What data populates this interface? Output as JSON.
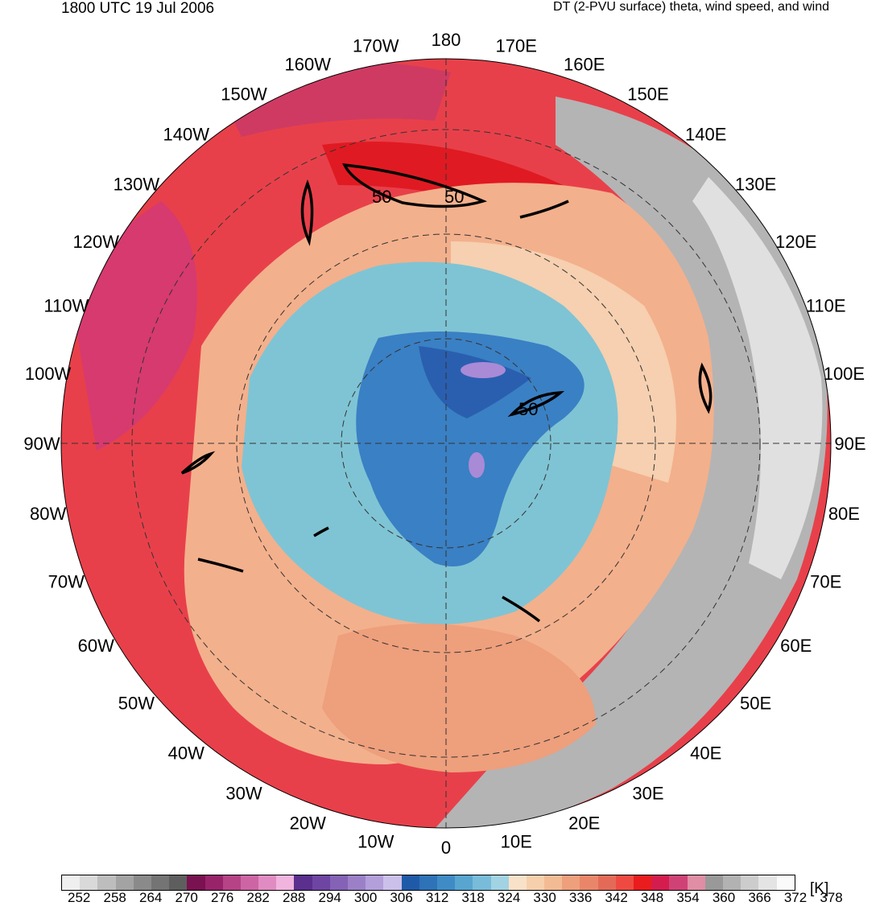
{
  "header": {
    "time": "1800 UTC 19 Jul 2006",
    "description": "DT (2-PVU surface) theta, wind speed, and wind"
  },
  "map": {
    "projection": "north-polar-stereographic",
    "longitude_labels": [
      {
        "lon": 180,
        "text": "180"
      },
      {
        "lon": -170,
        "text": "170W"
      },
      {
        "lon": -160,
        "text": "160W"
      },
      {
        "lon": -150,
        "text": "150W"
      },
      {
        "lon": -140,
        "text": "140W"
      },
      {
        "lon": -130,
        "text": "130W"
      },
      {
        "lon": -120,
        "text": "120W"
      },
      {
        "lon": -110,
        "text": "110W"
      },
      {
        "lon": -100,
        "text": "100W"
      },
      {
        "lon": -90,
        "text": "90W"
      },
      {
        "lon": -80,
        "text": "80W"
      },
      {
        "lon": -70,
        "text": "70W"
      },
      {
        "lon": -60,
        "text": "60W"
      },
      {
        "lon": -50,
        "text": "50W"
      },
      {
        "lon": -40,
        "text": "40W"
      },
      {
        "lon": -30,
        "text": "30W"
      },
      {
        "lon": -20,
        "text": "20W"
      },
      {
        "lon": -10,
        "text": "10W"
      },
      {
        "lon": 0,
        "text": "0"
      },
      {
        "lon": 10,
        "text": "10E"
      },
      {
        "lon": 20,
        "text": "20E"
      },
      {
        "lon": 30,
        "text": "30E"
      },
      {
        "lon": 40,
        "text": "40E"
      },
      {
        "lon": 50,
        "text": "50E"
      },
      {
        "lon": 60,
        "text": "60E"
      },
      {
        "lon": 70,
        "text": "70E"
      },
      {
        "lon": 80,
        "text": "80E"
      },
      {
        "lon": 90,
        "text": "90E"
      },
      {
        "lon": 100,
        "text": "100E"
      },
      {
        "lon": 110,
        "text": "110E"
      },
      {
        "lon": 120,
        "text": "120E"
      },
      {
        "lon": 130,
        "text": "130E"
      },
      {
        "lon": 140,
        "text": "140E"
      },
      {
        "lon": 150,
        "text": "150E"
      },
      {
        "lon": 160,
        "text": "160E"
      },
      {
        "lon": 170,
        "text": "170E"
      }
    ],
    "contour_labels": [
      "50",
      "50",
      "50"
    ],
    "colors": {
      "warm": "#e8404a",
      "hot": "#e01a22",
      "magenta": "#d63a6e",
      "peach": "#f3b08c",
      "light_peach": "#f6d0b0",
      "cool": "#7fc4d4",
      "blue": "#3a80c4",
      "deep_blue": "#2a5fb0",
      "violet": "#a98ad6",
      "gray": "#b4b4b4",
      "light_gray": "#e0e0e0"
    }
  },
  "colorbar": {
    "unit": "[K]",
    "tick_labels": [
      "252",
      "258",
      "264",
      "270",
      "276",
      "282",
      "288",
      "294",
      "300",
      "306",
      "312",
      "318",
      "324",
      "330",
      "336",
      "342",
      "348",
      "354",
      "360",
      "366",
      "372",
      "378"
    ],
    "colors": [
      "#efefef",
      "#d9d9d9",
      "#bdbdbd",
      "#a3a3a3",
      "#8a8a8a",
      "#747474",
      "#5e5e5e",
      "#7a1150",
      "#982369",
      "#b64386",
      "#cd65a4",
      "#e08cc2",
      "#f0b4de",
      "#5a2f8e",
      "#6e45a2",
      "#8462b6",
      "#9b80c8",
      "#b39fda",
      "#cbc0ea",
      "#1f5aa8",
      "#2e72b8",
      "#3f8bc6",
      "#58a5d0",
      "#78bcd9",
      "#a2d3e2",
      "#f8e1c8",
      "#f6cfac",
      "#f3bb94",
      "#ee9f7c",
      "#e9866a",
      "#e46a58",
      "#ef4a42",
      "#ea1c1d",
      "#d41d4e",
      "#d04275",
      "#e08da6",
      "#999999",
      "#b2b2b2",
      "#cccccc",
      "#e4e4e4",
      "#fafafa"
    ]
  }
}
